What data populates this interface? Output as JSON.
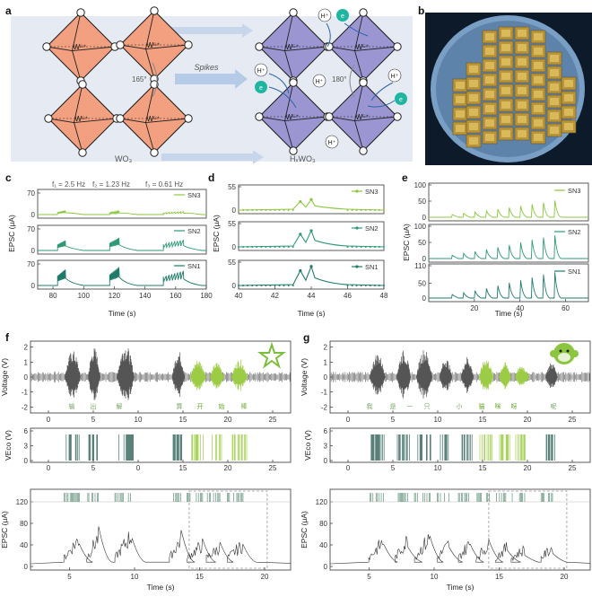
{
  "panels": {
    "a": {
      "label": "a",
      "spikes_label": "Spikes",
      "left_material": "WO₃",
      "right_material": "HₓWO₃",
      "w_left": "W⁶⁺",
      "w_right": "W⁵⁺",
      "angle_left": "165°",
      "angle_right": "180°",
      "h_ion": "H⁺",
      "electron": "e"
    },
    "b": {
      "label": "b"
    },
    "c": {
      "label": "c",
      "freq_labels": [
        "f₁ = 2.5 Hz",
        "f₂ = 1.23 Hz",
        "f₃ = 0.61 Hz"
      ]
    },
    "d": {
      "label": "d"
    },
    "e": {
      "label": "e"
    },
    "f": {
      "label": "f"
    },
    "g": {
      "label": "g"
    }
  },
  "colors": {
    "sn1": "#1f7a6a",
    "sn2": "#2e9a72",
    "sn3": "#8cc63e",
    "orange": "#f2a07f",
    "purple": "#9b96d2",
    "teal_dot": "#1fb5a0",
    "voice_gray": "#555555",
    "voice_green": "#9ccc45"
  },
  "chart_data": [
    {
      "panel": "c",
      "type": "line",
      "xlabel": "Time (s)",
      "ylabel": "EPSC (μA)",
      "xlim": [
        70,
        180
      ],
      "x_ticks": [
        "80",
        "100",
        "120",
        "140",
        "160",
        "180"
      ],
      "series": [
        {
          "name": "SN3",
          "y_ticks": [
            "0",
            "70"
          ],
          "ylim": [
            0,
            70
          ],
          "peaks": [
            12,
            10,
            9
          ]
        },
        {
          "name": "SN2",
          "y_ticks": [
            "0",
            "70"
          ],
          "ylim": [
            0,
            70
          ],
          "peaks": [
            30,
            38,
            32
          ]
        },
        {
          "name": "SN1",
          "y_ticks": [
            "0",
            "70"
          ],
          "ylim": [
            0,
            70
          ],
          "peaks": [
            48,
            55,
            44
          ]
        }
      ],
      "bursts": [
        {
          "start": 83,
          "end": 88,
          "count": 12
        },
        {
          "start": 117,
          "end": 123,
          "count": 10
        },
        {
          "start": 152,
          "end": 165,
          "count": 8
        }
      ]
    },
    {
      "panel": "d",
      "type": "line",
      "xlabel": "Time (s)",
      "ylabel": "EPSC (μA)",
      "xlim": [
        40,
        48
      ],
      "x_ticks": [
        "40",
        "42",
        "44",
        "46",
        "48"
      ],
      "series": [
        {
          "name": "SN3",
          "y_ticks": [
            "0",
            "55"
          ],
          "ylim": [
            0,
            55
          ],
          "peaks": [
            20,
            25
          ]
        },
        {
          "name": "SN2",
          "y_ticks": [
            "0",
            "55"
          ],
          "ylim": [
            0,
            55
          ],
          "peaks": [
            30,
            38
          ]
        },
        {
          "name": "SN1",
          "y_ticks": [
            "0",
            "55"
          ],
          "ylim": [
            0,
            55
          ],
          "peaks": [
            35,
            45
          ]
        }
      ],
      "spike_times": [
        43.4,
        44.0
      ]
    },
    {
      "panel": "e",
      "type": "line",
      "xlabel": "Time (s)",
      "ylabel": "EPSC (μA)",
      "xlim": [
        0,
        70
      ],
      "x_ticks": [
        "20",
        "40",
        "60"
      ],
      "spike_times": [
        10,
        15,
        20,
        25,
        30,
        35,
        40,
        45,
        50,
        55
      ],
      "series": [
        {
          "name": "SN3",
          "y_ticks": [
            "0",
            "50",
            "100"
          ],
          "ylim": [
            0,
            100
          ],
          "peaks": [
            8,
            12,
            16,
            20,
            25,
            30,
            35,
            40,
            45,
            52
          ]
        },
        {
          "name": "SN2",
          "y_ticks": [
            "0",
            "50",
            "100"
          ],
          "ylim": [
            0,
            100
          ],
          "peaks": [
            10,
            16,
            22,
            28,
            35,
            42,
            50,
            58,
            65,
            72
          ]
        },
        {
          "name": "SN1",
          "y_ticks": [
            "0",
            "50",
            "110"
          ],
          "ylim": [
            0,
            110
          ],
          "peaks": [
            12,
            18,
            25,
            33,
            42,
            52,
            60,
            70,
            80,
            88
          ]
        }
      ]
    },
    {
      "panel": "f",
      "type": "line",
      "voice": {
        "ylabel": "Voltage (V)",
        "y_ticks": [
          "2",
          "1",
          "0",
          "-1",
          "-2"
        ],
        "ylim": [
          -2.4,
          2.4
        ],
        "x_ticks": [
          "0",
          "5",
          "10",
          "15",
          "20",
          "25"
        ],
        "xlim": [
          -2,
          27
        ]
      },
      "chars": [
        "输",
        "出",
        "解",
        "算",
        "开",
        "始",
        "棒"
      ],
      "chars_green": [
        false,
        false,
        false,
        false,
        true,
        true,
        true
      ],
      "vco": {
        "ylabel": "VEco (V)",
        "y_ticks": [
          "6",
          "3",
          "0"
        ],
        "ylim": [
          0,
          6
        ],
        "x_ticks": [
          "0",
          "5",
          "0",
          "15",
          "20",
          "25"
        ]
      },
      "epsc": {
        "ylabel": "EPSC (μA)",
        "xlabel": "Time (s)",
        "y_ticks": [
          "120",
          "80",
          "40",
          "0"
        ],
        "ylim": [
          0,
          140
        ],
        "x_ticks": [
          "5",
          "10",
          "15",
          "20"
        ],
        "xlim": [
          2,
          22
        ]
      }
    },
    {
      "panel": "g",
      "type": "line",
      "voice": {
        "ylabel": "Voltage (V)",
        "y_ticks": [
          "2",
          "1",
          "0",
          "-1",
          "-2"
        ],
        "ylim": [
          -2.4,
          2.4
        ],
        "x_ticks": [
          "0",
          "5",
          "10",
          "15",
          "20",
          "25"
        ],
        "xlim": [
          -2,
          27
        ]
      },
      "chars": [
        "我",
        "是",
        "一",
        "只",
        "小",
        "猫",
        "咪",
        "呀",
        "呢"
      ],
      "chars_green": [
        false,
        false,
        false,
        false,
        false,
        true,
        true,
        true,
        false
      ],
      "vco": {
        "ylabel": "VEco (V)",
        "y_ticks": [
          "6",
          "3",
          "0"
        ],
        "ylim": [
          0,
          6
        ],
        "x_ticks": [
          "0",
          "5",
          "10",
          "15",
          "20",
          "25"
        ]
      },
      "epsc": {
        "ylabel": "EPSC (μA)",
        "xlabel": "Time (s)",
        "y_ticks": [
          "120",
          "80",
          "40",
          "0"
        ],
        "ylim": [
          0,
          140
        ],
        "x_ticks": [
          "5",
          "10",
          "15",
          "20"
        ],
        "xlim": [
          2,
          22
        ]
      }
    }
  ]
}
